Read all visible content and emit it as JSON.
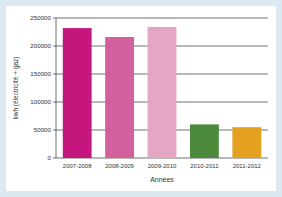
{
  "chart_data": {
    "type": "bar",
    "categories": [
      "2007-2008",
      "2008-2009",
      "2009-2010",
      "2010-2011",
      "2011-2012"
    ],
    "values": [
      232000,
      216000,
      234000,
      60000,
      55000
    ],
    "colors": [
      "#c4167c",
      "#d35f9c",
      "#e4a6c5",
      "#4a8a3a",
      "#e6a020"
    ],
    "ylabel": "kwh (électricité + gaz)",
    "xlabel": "Années",
    "ylim": [
      0,
      250000
    ],
    "yticks": [
      0,
      50000,
      100000,
      150000,
      200000,
      250000
    ],
    "grid": true
  }
}
